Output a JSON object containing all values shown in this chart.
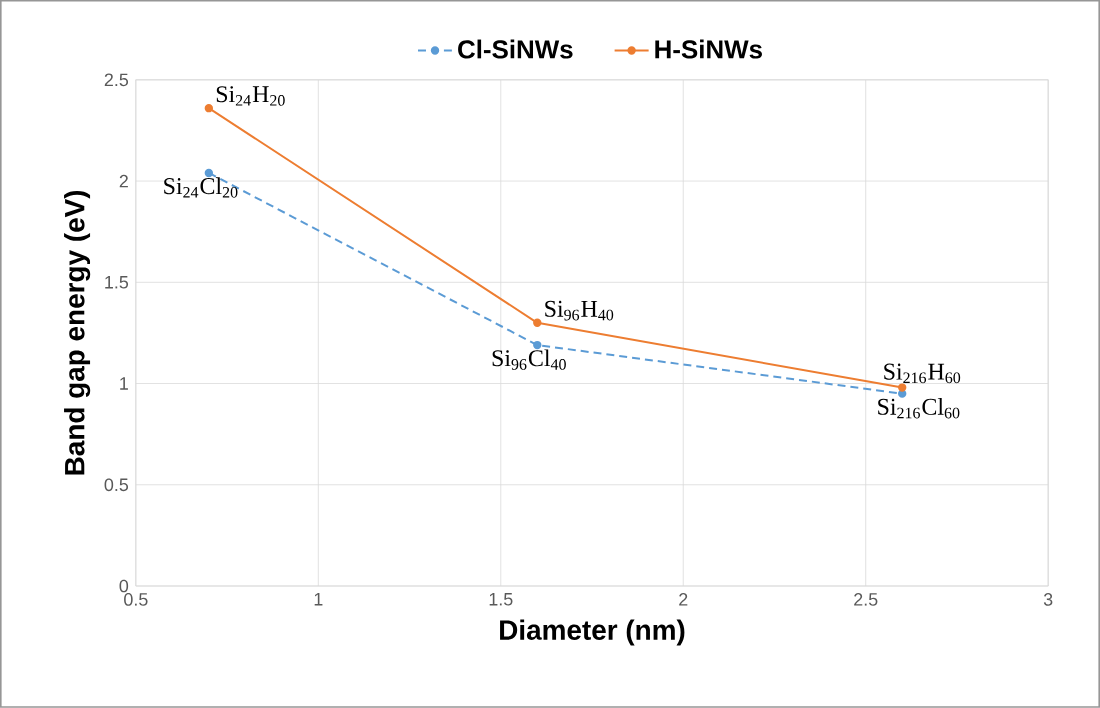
{
  "chart_data": {
    "type": "line",
    "xlabel": "Diameter (nm)",
    "ylabel": "Band gap energy (eV)",
    "x": [
      0.7,
      1.6,
      2.6
    ],
    "series": [
      {
        "name": "Cl-SiNWs",
        "color": "#5b9bd5",
        "values": [
          2.04,
          1.19,
          0.95
        ],
        "line_style": "dashed"
      },
      {
        "name": "H-SiNWs",
        "color": "#ed7d31",
        "values": [
          2.36,
          1.3,
          0.98
        ],
        "line_style": "solid"
      }
    ],
    "xlim": [
      0.5,
      3
    ],
    "xticks": [
      0.5,
      1,
      1.5,
      2,
      2.5,
      3
    ],
    "ylim": [
      0,
      2.5
    ],
    "yticks": [
      0,
      0.5,
      1,
      1.5,
      2,
      2.5
    ],
    "grid": true,
    "legend": "top",
    "marker": "circle",
    "annotations": [
      {
        "text": "Si$_{24}$H$_{20}$",
        "x": 0.7,
        "y": 2.36
      },
      {
        "text": "Si$_{24}$Cl$_{20}$",
        "x": 0.7,
        "y": 2.04
      },
      {
        "text": "Si$_{96}$H$_{40}$",
        "x": 1.6,
        "y": 1.3
      },
      {
        "text": "Si$_{96}$Cl$_{40}$",
        "x": 1.6,
        "y": 1.19
      },
      {
        "text": "Si$_{216}$H$_{60}$",
        "x": 2.6,
        "y": 0.98
      },
      {
        "text": "Si$_{216}$Cl$_{60}$",
        "x": 2.6,
        "y": 0.95
      }
    ]
  }
}
